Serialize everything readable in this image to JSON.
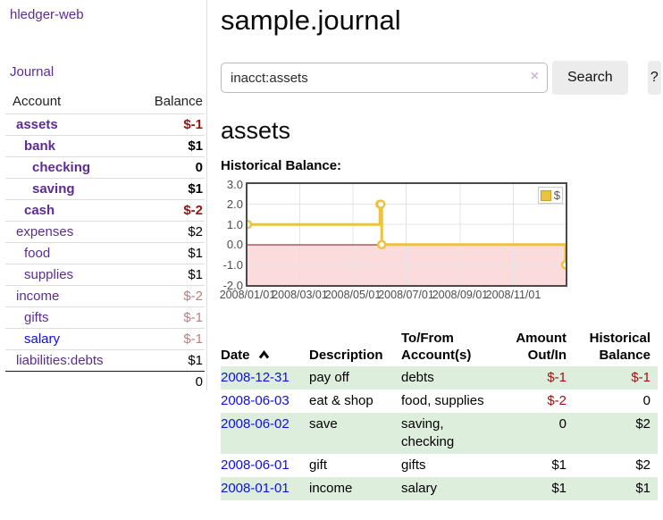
{
  "app": {
    "title": "hledger-web"
  },
  "colors": {
    "link_purple": "#5c2d91",
    "link_blue": "#0f0fdd",
    "date_blue": "#1111d6",
    "negative_strong": "#991111",
    "negative_dim": "#c27d7d",
    "row_green": "#ddeedd",
    "series_yellow": "#edc240",
    "negative_area": "#fbdbdb",
    "zero_line": "#871111"
  },
  "sidebar": {
    "journal_link": "Journal",
    "headers": {
      "account": "Account",
      "balance": "Balance"
    },
    "accounts": [
      {
        "name": "assets",
        "balance": "$-1",
        "level": 1,
        "bold": true,
        "neg": "strong"
      },
      {
        "name": "bank",
        "balance": "$1",
        "level": 2,
        "bold": true
      },
      {
        "name": "checking",
        "balance": "0",
        "level": 3,
        "bold": true
      },
      {
        "name": "saving",
        "balance": "$1",
        "level": 3,
        "bold": true
      },
      {
        "name": "cash",
        "balance": "$-2",
        "level": 2,
        "bold": true,
        "neg": "strong"
      },
      {
        "name": "expenses",
        "balance": "$2",
        "level": 1
      },
      {
        "name": "food",
        "balance": "$1",
        "level": 2
      },
      {
        "name": "supplies",
        "balance": "$1",
        "level": 2
      },
      {
        "name": "income",
        "balance": "$-2",
        "level": 1,
        "neg": "dim"
      },
      {
        "name": "gifts",
        "balance": "$-1",
        "level": 2,
        "neg": "dim"
      },
      {
        "name": "salary",
        "balance": "$-1",
        "level": 2,
        "neg": "dim",
        "link": "blue"
      },
      {
        "name": "liabilities:debts",
        "balance": "$1",
        "level": 1
      }
    ],
    "total": "0"
  },
  "main": {
    "title": "sample.journal",
    "search": {
      "value": "inacct:assets",
      "clear_icon": "×",
      "search_button": "Search",
      "help_button": "?"
    },
    "account_heading": "assets",
    "chart_title": "Historical Balance:",
    "register": {
      "headers": [
        "Date",
        "Description",
        "To/From Account(s)",
        "Amount Out/In",
        "Historical Balance"
      ],
      "sort_column": "Date",
      "sort_direction": "ascending",
      "rows": [
        {
          "date": "2008-12-31",
          "description": "pay off",
          "accounts": "debts",
          "amount": "$-1",
          "amount_neg": true,
          "balance": "$-1",
          "balance_neg": true,
          "green": true
        },
        {
          "date": "2008-06-03",
          "description": "eat & shop",
          "accounts": "food, supplies",
          "amount": "$-2",
          "amount_neg": true,
          "balance": "0",
          "balance_neg": false,
          "green": false
        },
        {
          "date": "2008-06-02",
          "description": "save",
          "accounts": "saving, checking",
          "amount": "0",
          "amount_neg": false,
          "balance": "$2",
          "balance_neg": false,
          "green": true
        },
        {
          "date": "2008-06-01",
          "description": "gift",
          "accounts": "gifts",
          "amount": "$1",
          "amount_neg": false,
          "balance": "$2",
          "balance_neg": false,
          "green": false
        },
        {
          "date": "2008-01-01",
          "description": "income",
          "accounts": "salary",
          "amount": "$1",
          "amount_neg": false,
          "balance": "$1",
          "balance_neg": false,
          "green": true
        }
      ]
    }
  },
  "chart_data": {
    "type": "line",
    "subtype": "step",
    "title": "Historical Balance:",
    "series": [
      {
        "name": "$",
        "color": "#edc240",
        "points": [
          [
            "2008/01/01",
            1
          ],
          [
            "2008/06/01",
            2
          ],
          [
            "2008/06/02",
            2
          ],
          [
            "2008/06/03",
            0
          ],
          [
            "2008/12/31",
            -1
          ]
        ]
      }
    ],
    "xlim": [
      "2008/01/01",
      "2008/12/31"
    ],
    "ylim": [
      -2,
      3
    ],
    "yticks": [
      3,
      2,
      1,
      0,
      -1,
      -2
    ],
    "xticks": [
      "2008/01/01",
      "2008/03/01",
      "2008/05/01",
      "2008/07/01",
      "2008/09/01",
      "2008/11/01"
    ],
    "grid": true,
    "legend_position": "top-right",
    "negative_region_fill": "#fbdbdb",
    "zero_line_color": "#871111"
  }
}
